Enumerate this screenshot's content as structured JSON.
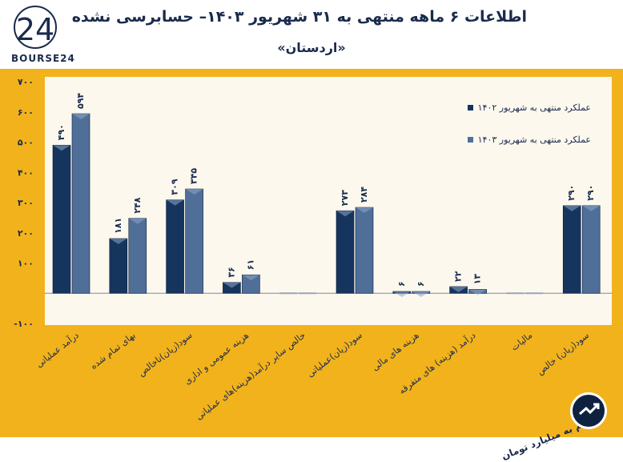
{
  "header": {
    "title": "اطلاعات ۶ ماهه منتهی به ۳۱ شهریور ۱۴۰۳– حسابرسی نشده",
    "subtitle": "«اردستان»",
    "logo_text": "BOURSE24",
    "logo_mark": "24"
  },
  "footer": {
    "unit_note": "ارقام به میلیارد تومان",
    "icon": "trend-arrow-icon"
  },
  "colors": {
    "frame": "#f2b21c",
    "plot_bg": "#fdf8ee",
    "series_1402": "#16355e",
    "series_1403": "#4f6f99",
    "text": "#1a2b4c"
  },
  "chart_data": {
    "type": "bar",
    "categories": [
      "درآمد عملیاتی",
      "بهای تمام شده",
      "سود(زیان)ناخالص",
      "هزینه عمومی و اداری",
      "خالص سایر درآمد(هزینه)های عملیاتی",
      "سود(زیان)عملیاتی",
      "هزینه های مالی",
      "درآمد (هزینه) های متفرقه",
      "مالیات",
      "سود(زیان) خالص"
    ],
    "series": [
      {
        "name": "عملکرد منتهی به شهریور ۱۴۰۲",
        "values": [
          490,
          181,
          309,
          36,
          0,
          273,
          6,
          22,
          0,
          290
        ],
        "labels": [
          "۴۹۰",
          "۱۸۱",
          "۳۰۹",
          "۳۶",
          "",
          "۲۷۳",
          "۶",
          "۲۲",
          "",
          "۲۹۰"
        ]
      },
      {
        "name": "عملکرد منتهی به شهریور ۱۴۰۳",
        "values": [
          594,
          248,
          345,
          61,
          0,
          284,
          6,
          13,
          0,
          290
        ],
        "labels": [
          "۵۹۴",
          "۲۴۸",
          "۳۴۵",
          "۶۱",
          "",
          "۲۸۴",
          "۶",
          "۱۳",
          "",
          "۲۹۰"
        ]
      }
    ],
    "yticks": [
      700,
      600,
      500,
      400,
      300,
      200,
      100,
      0,
      -100
    ],
    "ytick_labels": [
      "۷۰۰",
      "۶۰۰",
      "۵۰۰",
      "۴۰۰",
      "۳۰۰",
      "۲۰۰",
      "۱۰۰",
      "",
      "-۱۰۰"
    ],
    "ylim": [
      -100,
      700
    ],
    "grid": false,
    "legend_position": "top-right"
  }
}
